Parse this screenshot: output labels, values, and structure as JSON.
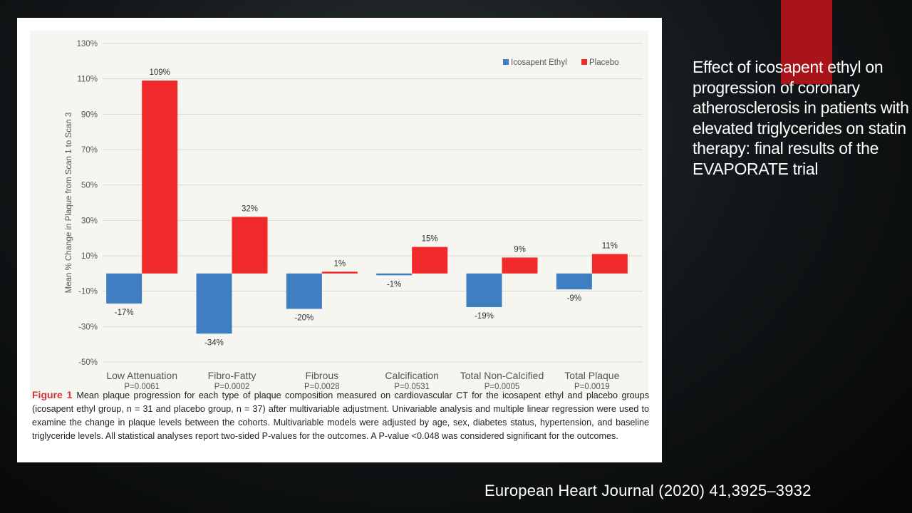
{
  "slide": {
    "title": "Effect of icosapent ethyl on progression of coronary atherosclerosis in patients with elevated triglycerides on statin therapy: final results of the EVAPORATE trial",
    "citation": "European Heart Journal (2020) 41,3925–3932",
    "accent_color": "#a8141a"
  },
  "caption": {
    "label": "Figure 1",
    "text": "Mean plaque progression for each type of plaque composition measured on cardiovascular CT for the icosapent ethyl and placebo groups (icosapent ethyl group, n = 31 and placebo group, n = 37) after multivariable adjustment. Univariable analysis and multiple linear regression were used to examine the change in plaque levels between the cohorts. Multivariable models were adjusted by age, sex, diabetes status, hypertension, and baseline triglyceride levels. All statistical analyses report two-sided P-values for the outcomes. A P-value <0.048 was considered significant for the outcomes."
  },
  "chart_data": {
    "type": "bar",
    "title": "",
    "xlabel": "",
    "ylabel": "Mean % Change in Plaque from Scan 1 to Scan 3",
    "ylim": [
      -50,
      130
    ],
    "yticks": [
      -50,
      -30,
      -10,
      10,
      30,
      50,
      70,
      90,
      110,
      130
    ],
    "ytick_labels": [
      "-50%",
      "-30%",
      "-10%",
      "10%",
      "30%",
      "50%",
      "70%",
      "90%",
      "110%",
      "130%"
    ],
    "grid": true,
    "legend_position": "top-right",
    "categories": [
      "Low Attenuation",
      "Fibro-Fatty",
      "Fibrous",
      "Calcification",
      "Total Non-Calcified",
      "Total Plaque"
    ],
    "p_values": [
      "P=0.0061",
      "P=0.0002",
      "P=0.0028",
      "P=0.0531",
      "P=0.0005",
      "P=0.0019"
    ],
    "series": [
      {
        "name": "Icosapent Ethyl",
        "color": "#3f7fc1",
        "values": [
          -17,
          -34,
          -20,
          -1,
          -19,
          -9
        ],
        "labels": [
          "-17%",
          "-34%",
          "-20%",
          "-1%",
          "-19%",
          "-9%"
        ]
      },
      {
        "name": "Placebo",
        "color": "#f02a2a",
        "values": [
          109,
          32,
          1,
          15,
          9,
          11
        ],
        "labels": [
          "109%",
          "32%",
          "1%",
          "15%",
          "9%",
          "11%"
        ]
      }
    ]
  }
}
